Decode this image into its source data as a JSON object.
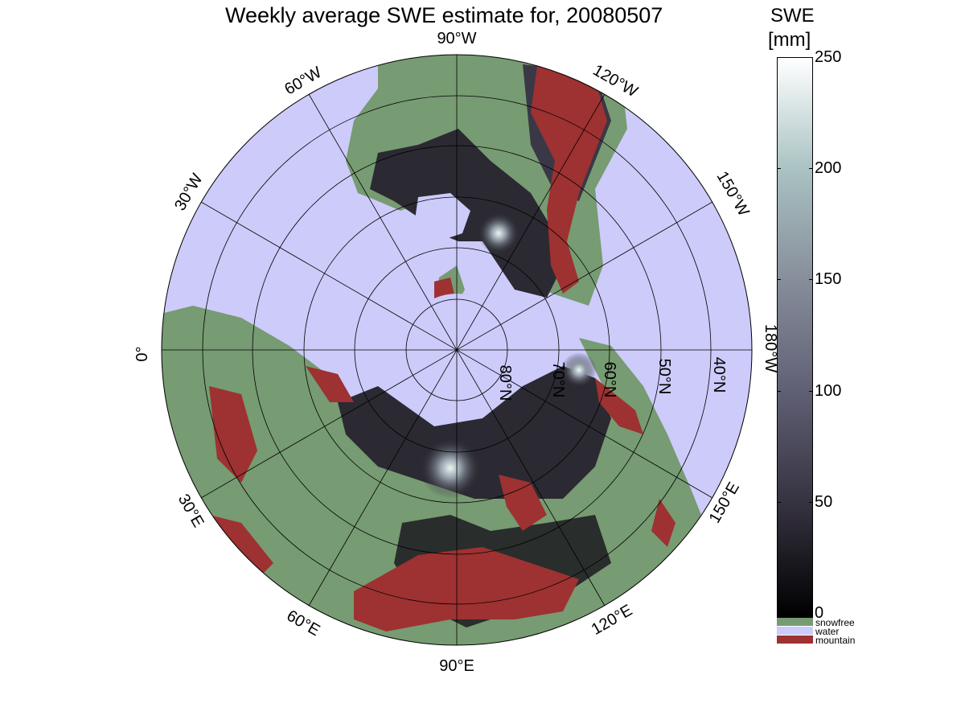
{
  "title": "Weekly average SWE estimate for, 20080507",
  "colorbar": {
    "label": "SWE",
    "unit": "[mm]",
    "min": 0,
    "max": 250,
    "ticks": [
      "0",
      "50",
      "100",
      "150",
      "200",
      "250"
    ],
    "categories": [
      {
        "label": "snowfree",
        "color": "#779b72"
      },
      {
        "label": "water",
        "color": "#cccbfa"
      },
      {
        "label": "mountain",
        "color": "#9e3131"
      }
    ],
    "gradient": [
      "#000000",
      "#35323f",
      "#5f5f74",
      "#868d9a",
      "#a9c2c2",
      "#ffffff"
    ]
  },
  "map": {
    "projection": "north polar stereographic",
    "longitude_labels": [
      "90°W",
      "60°W",
      "120°W",
      "30°W",
      "150°W",
      "0°",
      "180°W",
      "30°E",
      "150°E",
      "60°E",
      "120°E",
      "90°E"
    ],
    "latitude_labels": [
      "80°N",
      "70°N",
      "60°N",
      "50°N",
      "40°N"
    ],
    "colors": {
      "water": "#cccbfa",
      "snowfree": "#779b72",
      "mountain": "#9e3131",
      "snow": "#2b2932"
    }
  }
}
